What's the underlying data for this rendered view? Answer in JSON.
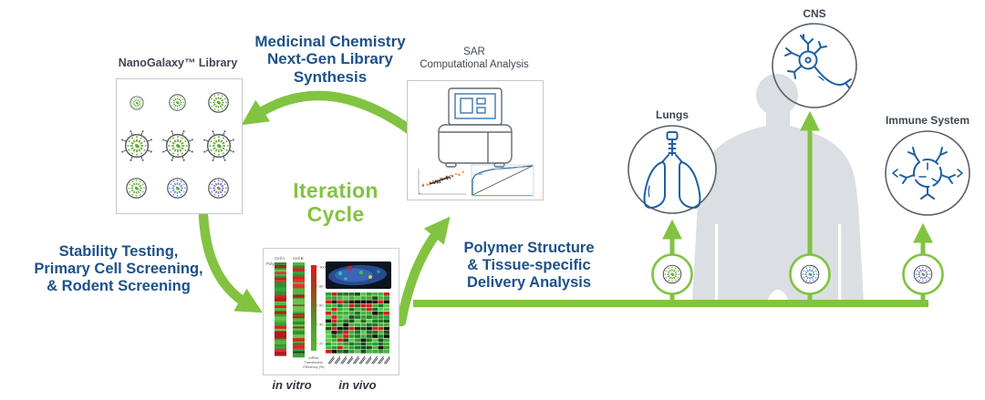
{
  "colors": {
    "green": "#82c341",
    "blue_heading": "#1d5189",
    "icon_blue": "#1d5fa5",
    "gray_text": "#3e4754",
    "silhouette": "#dbdfe3"
  },
  "library": {
    "label": "NanoGalaxy™ Library"
  },
  "steps": {
    "synthesis": "Medicinal Chemistry\nNext-Gen Library\nSynthesis",
    "iteration": "Iteration\nCycle",
    "screening": "Stability Testing,\nPrimary Cell Screening,\n& Rodent Screening",
    "delivery": "Polymer Structure\n& Tissue-specific\nDelivery Analysis"
  },
  "sar": {
    "label": "SAR\nComputational Analysis"
  },
  "heatmap": {
    "polymers_label": "Polymers",
    "col_a": "Cell A",
    "col_b": "Cell B",
    "colorbar_ticks": [
      "100",
      "80",
      "60",
      "40",
      "20"
    ],
    "colorbar_caption_lines": [
      "mRNA",
      "Transfection",
      "Efficiency (%)"
    ],
    "in_vitro": "in vitro",
    "in_vivo": "in vivo"
  },
  "organs": [
    {
      "id": "lungs",
      "label": "Lungs"
    },
    {
      "id": "cns",
      "label": "CNS"
    },
    {
      "id": "immune",
      "label": "Immune System"
    }
  ]
}
